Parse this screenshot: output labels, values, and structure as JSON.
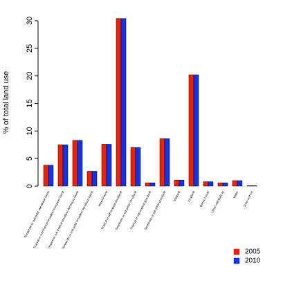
{
  "chart_data": {
    "type": "bar",
    "ylabel": "% of total land use",
    "ylim": [
      0,
      30
    ],
    "yticks": [
      0,
      5,
      10,
      15,
      20,
      25,
      30
    ],
    "grid": false,
    "legend_position": "bottom-right",
    "categories": [
      "Temperate or sub-polar needleleaf forest",
      "Tropical or sub-tropical broadleaf evergreen forest",
      "Tropical or sub-tropical broadleaf deciduous forest",
      "Temperate or sub-polar broadleaf deciduous forest",
      "Mixed Forest",
      "Tropical or sub-tropical shrubland",
      "Temperate or sub-polar shrubland",
      "Tropical or sub-tropical grassland",
      "Temperate or sub-polar grassland",
      "Wetland",
      "Cropland",
      "Barren Lands",
      "Urban and Built-up",
      "Water",
      "Snow and Ice"
    ],
    "series": [
      {
        "name": "2005",
        "color": "#ee2200",
        "values": [
          3.8,
          7.5,
          8.3,
          2.7,
          7.6,
          30.4,
          7.0,
          0.6,
          8.6,
          1.1,
          20.2,
          0.8,
          0.6,
          1.0,
          0.05
        ]
      },
      {
        "name": "2010",
        "color": "#1133ee",
        "values": [
          3.8,
          7.5,
          8.3,
          2.7,
          7.6,
          30.4,
          7.0,
          0.6,
          8.6,
          1.1,
          20.2,
          0.8,
          0.6,
          1.0,
          0.05
        ]
      }
    ]
  }
}
